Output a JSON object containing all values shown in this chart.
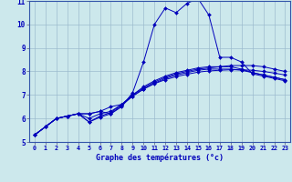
{
  "xlabel": "Graphe des températures (°c)",
  "background_color": "#cce8ec",
  "line_color": "#0000bb",
  "grid_color": "#99b8cc",
  "xlim": [
    -0.5,
    23.5
  ],
  "ylim": [
    5.0,
    11.0
  ],
  "yticks": [
    5,
    6,
    7,
    8,
    9,
    10,
    11
  ],
  "xticks": [
    0,
    1,
    2,
    3,
    4,
    5,
    6,
    7,
    8,
    9,
    10,
    11,
    12,
    13,
    14,
    15,
    16,
    17,
    18,
    19,
    20,
    21,
    22,
    23
  ],
  "series": [
    [
      5.3,
      5.65,
      6.0,
      6.1,
      6.2,
      6.2,
      6.3,
      6.2,
      6.5,
      7.1,
      8.4,
      10.0,
      10.7,
      10.5,
      10.9,
      11.1,
      10.4,
      8.6,
      8.6,
      8.4,
      7.9,
      7.8,
      7.7,
      7.6
    ],
    [
      5.3,
      5.65,
      6.0,
      6.1,
      6.2,
      6.2,
      6.3,
      6.5,
      6.6,
      7.0,
      7.35,
      7.6,
      7.8,
      7.95,
      8.05,
      8.15,
      8.2,
      8.2,
      8.2,
      8.1,
      7.95,
      7.85,
      7.75,
      7.65
    ],
    [
      5.3,
      5.65,
      6.0,
      6.1,
      6.2,
      6.0,
      6.2,
      6.3,
      6.6,
      7.0,
      7.3,
      7.55,
      7.75,
      7.9,
      8.0,
      8.1,
      8.15,
      8.2,
      8.25,
      8.25,
      8.25,
      8.2,
      8.1,
      8.0
    ],
    [
      5.3,
      5.65,
      6.0,
      6.1,
      6.2,
      5.85,
      6.05,
      6.2,
      6.55,
      6.95,
      7.25,
      7.5,
      7.7,
      7.85,
      7.95,
      8.05,
      8.1,
      8.1,
      8.1,
      8.05,
      7.95,
      7.85,
      7.75,
      7.65
    ],
    [
      5.3,
      5.65,
      6.0,
      6.1,
      6.2,
      5.85,
      6.1,
      6.25,
      6.6,
      6.95,
      7.25,
      7.48,
      7.65,
      7.78,
      7.88,
      7.97,
      8.02,
      8.05,
      8.07,
      8.07,
      8.05,
      8.0,
      7.93,
      7.85
    ]
  ]
}
